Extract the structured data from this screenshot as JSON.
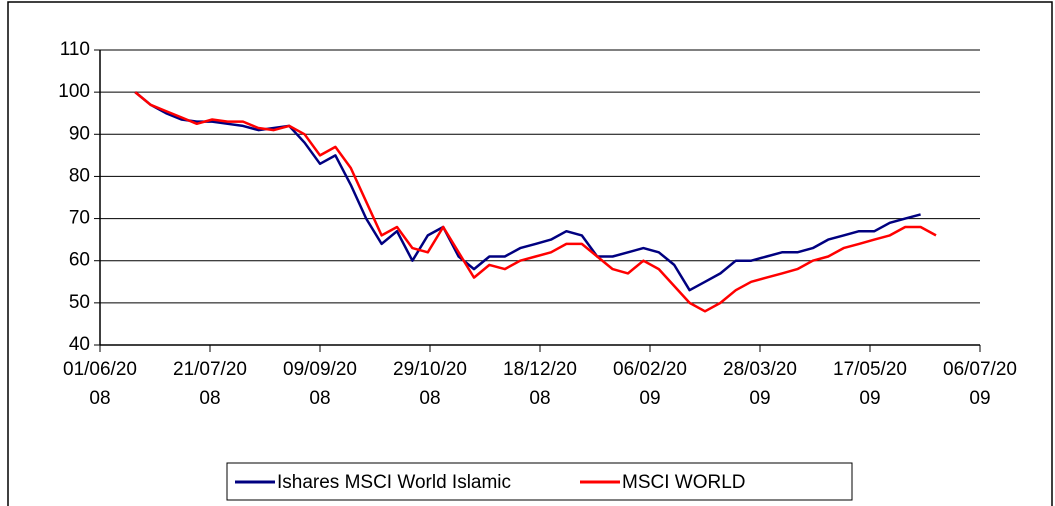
{
  "chart_data": {
    "type": "line",
    "x": [
      "2008-06-17",
      "2008-06-24",
      "2008-07-01",
      "2008-07-08",
      "2008-07-15",
      "2008-07-22",
      "2008-07-29",
      "2008-08-05",
      "2008-08-12",
      "2008-08-19",
      "2008-08-26",
      "2008-09-02",
      "2008-09-09",
      "2008-09-16",
      "2008-09-23",
      "2008-09-30",
      "2008-10-07",
      "2008-10-14",
      "2008-10-21",
      "2008-10-28",
      "2008-11-04",
      "2008-11-11",
      "2008-11-18",
      "2008-11-25",
      "2008-12-02",
      "2008-12-09",
      "2008-12-16",
      "2008-12-23",
      "2008-12-30",
      "2009-01-06",
      "2009-01-13",
      "2009-01-20",
      "2009-01-27",
      "2009-02-03",
      "2009-02-10",
      "2009-02-17",
      "2009-02-24",
      "2009-03-03",
      "2009-03-10",
      "2009-03-17",
      "2009-03-24",
      "2009-03-31",
      "2009-04-07",
      "2009-04-14",
      "2009-04-21",
      "2009-04-28",
      "2009-05-05",
      "2009-05-12",
      "2009-05-19",
      "2009-05-26",
      "2009-06-02",
      "2009-06-09",
      "2009-06-16"
    ],
    "series": [
      {
        "name": "Ishares MSCI World Islamic",
        "color": "#000080",
        "values": [
          100,
          97,
          95,
          93.5,
          93,
          93,
          92.5,
          92,
          91,
          91.5,
          92,
          88,
          83,
          85,
          78,
          70,
          64,
          67,
          60,
          66,
          68,
          61,
          58,
          61,
          61,
          63,
          64,
          65,
          67,
          66,
          61,
          61,
          62,
          63,
          62,
          59,
          53,
          55,
          57,
          60,
          60,
          61,
          62,
          62,
          63,
          65,
          66,
          67,
          67,
          69,
          70,
          71,
          null
        ]
      },
      {
        "name": "MSCI WORLD",
        "color": "#ff0000",
        "values": [
          100,
          97,
          95.5,
          94,
          92.5,
          93.5,
          93,
          93,
          91.5,
          91,
          92,
          90,
          85,
          87,
          82,
          74,
          66,
          68,
          63,
          62,
          68,
          62,
          56,
          59,
          58,
          60,
          61,
          62,
          64,
          64,
          61,
          58,
          57,
          60,
          58,
          54,
          50,
          48,
          50,
          53,
          55,
          56,
          57,
          58,
          60,
          61,
          63,
          64,
          65,
          66,
          68,
          68,
          66
        ]
      }
    ],
    "xlim": [
      "2008-06-01",
      "2009-07-06"
    ],
    "xticks": [
      {
        "value": "2008-06-01",
        "label": "01/06/2008"
      },
      {
        "value": "2008-07-21",
        "label": "21/07/2008"
      },
      {
        "value": "2008-09-09",
        "label": "09/09/2008"
      },
      {
        "value": "2008-10-29",
        "label": "29/10/2008"
      },
      {
        "value": "2008-12-18",
        "label": "18/12/2008"
      },
      {
        "value": "2009-02-06",
        "label": "06/02/2009"
      },
      {
        "value": "2009-03-28",
        "label": "28/03/2009"
      },
      {
        "value": "2009-05-17",
        "label": "17/05/2009"
      },
      {
        "value": "2009-07-06",
        "label": "06/07/2009"
      }
    ],
    "ylim": [
      40,
      110
    ],
    "yticks": [
      40,
      50,
      60,
      70,
      80,
      90,
      100,
      110
    ],
    "grid": true,
    "legend": "bottom"
  }
}
